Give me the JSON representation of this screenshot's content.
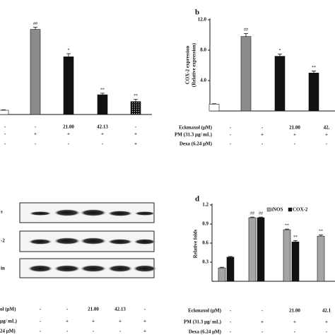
{
  "chart_data": [
    {
      "type": "bar",
      "categories": [
        null,
        null,
        null,
        null,
        null
      ],
      "values": [
        0.56,
        11.2,
        7.6,
        2.6,
        1.7
      ],
      "errors": [
        0.05,
        0.3,
        0.4,
        0.2,
        0.3
      ],
      "annotations": [
        null,
        "##",
        "*",
        "**",
        "**"
      ],
      "colors": [
        "#ffffff",
        "#8c8c8c",
        "#111111",
        "#111111",
        "#111111"
      ],
      "dotted": [
        false,
        false,
        false,
        false,
        true
      ],
      "ylim": [
        0,
        12
      ],
      "treatments": [
        {
          "values": [
            "-",
            "-",
            "21.00",
            "42.13",
            "-"
          ]
        },
        {
          "values": [
            "-",
            "+",
            "+",
            "+",
            "+"
          ]
        },
        {
          "values": [
            "-",
            "-",
            "-",
            "-",
            "+"
          ]
        }
      ]
    },
    {
      "type": "bar",
      "panel_label": "b",
      "ylabel": [
        "COX-2 expression",
        "(Relative expression)"
      ],
      "categories": [
        null,
        null,
        null,
        null
      ],
      "values": [
        0.9,
        9.8,
        7.2,
        5.0
      ],
      "errors": [
        0.05,
        0.4,
        0.3,
        0.25
      ],
      "annotations": [
        null,
        "##",
        "*",
        "**"
      ],
      "colors": [
        "#ffffff",
        "#8c8c8c",
        "#111111",
        "#111111"
      ],
      "dotted": [
        false,
        false,
        false,
        false
      ],
      "ylim": [
        0,
        12
      ],
      "yticks": [
        {
          "value": 4,
          "label": "4.0"
        },
        {
          "value": 8,
          "label": "8.0"
        },
        {
          "value": 12,
          "label": "12.0"
        }
      ],
      "treatments": [
        {
          "label": "Eckmaxol (μM)",
          "values": [
            "-",
            "-",
            "21.00",
            "42."
          ]
        },
        {
          "label": "PM (31.3 μg/ mL)",
          "values": [
            "-",
            "+",
            "+",
            "+"
          ]
        },
        {
          "label": "Dexa (6.24 μM)",
          "values": [
            "-",
            "-",
            "-",
            "-"
          ]
        }
      ]
    },
    {
      "type": "bar",
      "panel_label": "d",
      "ylabel": [
        "Relative folds"
      ],
      "categories": [
        null,
        null,
        null,
        null
      ],
      "series": [
        {
          "name": "iNOS",
          "color": "#a6a6a6",
          "values": [
            0.21,
            1.0,
            0.81,
            0.71
          ],
          "errors": [
            0.01,
            0.01,
            0.01,
            0.02
          ],
          "annotations": [
            null,
            "##",
            "**",
            "**"
          ]
        },
        {
          "name": "COX-2",
          "color": "#111111",
          "values": [
            0.38,
            1.0,
            0.62,
            null
          ],
          "errors": [
            0.01,
            0.01,
            0.02,
            null
          ],
          "annotations": [
            null,
            "##",
            "**",
            null
          ]
        }
      ],
      "ylim": [
        0,
        1.2
      ],
      "yticks": [
        0.3,
        0.6,
        0.9,
        1.2
      ],
      "treatments": [
        {
          "label": "Eckmaxol (μM)",
          "values": [
            "-",
            "-",
            "21.00",
            "42.1"
          ]
        },
        {
          "label": "PM (31.3 μg/ mL)",
          "values": [
            "-",
            "+",
            "+",
            "+"
          ]
        },
        {
          "label": "Dexa (6.24 μM)",
          "values": [
            "-",
            "-",
            "-",
            "-"
          ]
        }
      ]
    }
  ],
  "blot": {
    "rows": [
      {
        "label": "s"
      },
      {
        "label": "-2"
      },
      {
        "label": "in"
      }
    ],
    "treatments": [
      {
        "label": "ol (μM)",
        "values": [
          "-",
          "-",
          "21.00",
          "42.13",
          "-"
        ]
      },
      {
        "label": "μg/ mL)",
        "values": [
          "-",
          "+",
          "+",
          "+",
          "+"
        ]
      },
      {
        "label": "24 μM)",
        "values": [
          "-",
          "-",
          "-",
          "-",
          "+"
        ]
      }
    ]
  }
}
